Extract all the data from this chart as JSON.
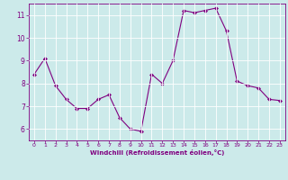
{
  "x": [
    0,
    1,
    2,
    3,
    4,
    5,
    6,
    7,
    8,
    9,
    10,
    11,
    12,
    13,
    14,
    15,
    16,
    17,
    18,
    19,
    20,
    21,
    22,
    23
  ],
  "y": [
    8.4,
    9.1,
    7.9,
    7.3,
    6.9,
    6.9,
    7.3,
    7.5,
    6.5,
    6.0,
    5.9,
    8.4,
    8.0,
    9.0,
    11.2,
    11.1,
    11.2,
    11.3,
    10.3,
    8.1,
    7.9,
    7.8,
    7.3,
    7.25
  ],
  "xlabel": "Windchill (Refroidissement éolien,°C)",
  "xlim": [
    -0.5,
    23.5
  ],
  "ylim": [
    5.5,
    11.5
  ],
  "yticks": [
    6,
    7,
    8,
    9,
    10,
    11
  ],
  "xticks": [
    0,
    1,
    2,
    3,
    4,
    5,
    6,
    7,
    8,
    9,
    10,
    11,
    12,
    13,
    14,
    15,
    16,
    17,
    18,
    19,
    20,
    21,
    22,
    23
  ],
  "line_color": "#800080",
  "marker_color": "#800080",
  "bg_color": "#cceaea",
  "grid_color": "#b0d8d8",
  "tick_color": "#800080",
  "label_color": "#800080",
  "spine_color": "#800080"
}
